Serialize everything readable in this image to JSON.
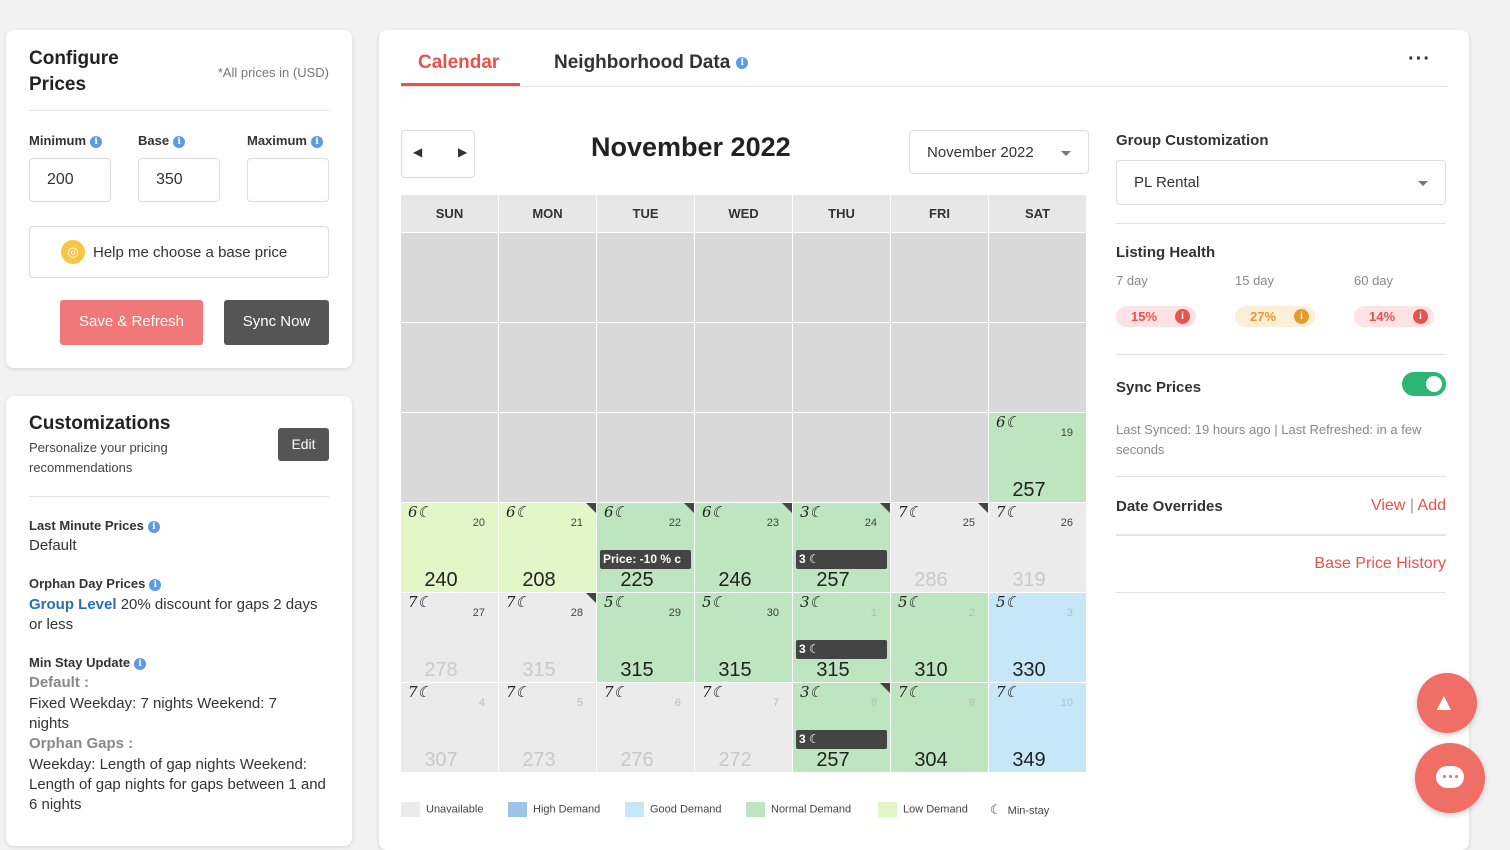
{
  "config": {
    "title_line1": "Configure",
    "title_line2": "Prices",
    "currency_note": "*All prices in (USD)",
    "minimum_label": "Minimum",
    "base_label": "Base",
    "maximum_label": "Maximum",
    "minimum_value": "200",
    "base_value": "350",
    "maximum_value": "",
    "help_label": "Help me choose a base price",
    "save_label": "Save & Refresh",
    "sync_label": "Sync Now"
  },
  "customizations": {
    "title": "Customizations",
    "subtitle": "Personalize your pricing recommendations",
    "edit_label": "Edit",
    "last_minute_label": "Last Minute Prices",
    "last_minute_value": "Default",
    "orphan_label": "Orphan Day Prices",
    "orphan_group": "Group Level",
    "orphan_text": " 20% discount for gaps 2 days or less",
    "min_stay_label": "Min Stay Update",
    "min_stay_default_label": "Default :",
    "min_stay_default_text": "Fixed Weekday: 7 nights Weekend: 7 nights",
    "orphan_gaps_label": "Orphan Gaps :",
    "orphan_gaps_text": "Weekday: Length of gap nights Weekend: Length of gap nights for gaps between 1 and 6 nights"
  },
  "tabs": {
    "calendar": "Calendar",
    "neighborhood": "Neighborhood Data",
    "menu": "···"
  },
  "calendar": {
    "title": "November 2022",
    "selected_month": "November 2022",
    "weekdays": [
      "SUN",
      "MON",
      "TUE",
      "WED",
      "THU",
      "FRI",
      "SAT"
    ],
    "weeks": [
      [
        null,
        null,
        null,
        null,
        null,
        null,
        null
      ],
      [
        null,
        null,
        null,
        null,
        null,
        null,
        null
      ],
      [
        null,
        null,
        null,
        null,
        null,
        null,
        {
          "day": "19",
          "minstay": "6☾",
          "price": "257",
          "demand": "normal"
        }
      ],
      [
        {
          "day": "20",
          "minstay": "6☾",
          "price": "240",
          "demand": "low"
        },
        {
          "day": "21",
          "minstay": "6☾",
          "price": "208",
          "demand": "low",
          "corner": true
        },
        {
          "day": "22",
          "minstay": "6☾",
          "price": "225",
          "demand": "normal",
          "corner": true,
          "bar": "Price: -10 % c"
        },
        {
          "day": "23",
          "minstay": "6☾",
          "price": "246",
          "demand": "normal",
          "corner": true
        },
        {
          "day": "24",
          "minstay": "3☾",
          "price": "257",
          "demand": "normal",
          "corner": true,
          "bar": "3 ☾"
        },
        {
          "day": "25",
          "minstay": "7☾",
          "price": "286",
          "demand": "unavailable",
          "corner": true
        },
        {
          "day": "26",
          "minstay": "7☾",
          "price": "319",
          "demand": "unavailable"
        }
      ],
      [
        {
          "day": "27",
          "minstay": "7☾",
          "price": "278",
          "demand": "unavailable"
        },
        {
          "day": "28",
          "minstay": "7☾",
          "price": "315",
          "demand": "unavailable",
          "corner": true
        },
        {
          "day": "29",
          "minstay": "5☾",
          "price": "315",
          "demand": "normal"
        },
        {
          "day": "30",
          "minstay": "5☾",
          "price": "315",
          "demand": "normal"
        },
        {
          "day": "1",
          "minstay": "3☾",
          "price": "315",
          "demand": "normal",
          "bar": "3 ☾",
          "faint": true
        },
        {
          "day": "2",
          "minstay": "5☾",
          "price": "310",
          "demand": "normal",
          "faint": true
        },
        {
          "day": "3",
          "minstay": "5☾",
          "price": "330",
          "demand": "good",
          "faint": true
        }
      ],
      [
        {
          "day": "4",
          "minstay": "7☾",
          "price": "307",
          "demand": "unavailable",
          "faint": true
        },
        {
          "day": "5",
          "minstay": "7☾",
          "price": "273",
          "demand": "unavailable",
          "faint": true
        },
        {
          "day": "6",
          "minstay": "7☾",
          "price": "276",
          "demand": "unavailable",
          "faint": true
        },
        {
          "day": "7",
          "minstay": "7☾",
          "price": "272",
          "demand": "unavailable",
          "faint": true
        },
        {
          "day": "8",
          "minstay": "3☾",
          "price": "257",
          "demand": "normal",
          "bar": "3 ☾",
          "corner": true,
          "faint": true
        },
        {
          "day": "9",
          "minstay": "7☾",
          "price": "304",
          "demand": "normal",
          "faint": true
        },
        {
          "day": "10",
          "minstay": "7☾",
          "price": "349",
          "demand": "good",
          "faint": true
        }
      ]
    ],
    "legend": [
      {
        "label": "Unavailable",
        "color": "#ebebeb"
      },
      {
        "label": "High Demand",
        "color": "#9ec3e6"
      },
      {
        "label": "Good Demand",
        "color": "#c6e7f7"
      },
      {
        "label": "Normal Demand",
        "color": "#bde5bf"
      },
      {
        "label": "Low Demand",
        "color": "#e2f7c8"
      },
      {
        "label": "Min-stay",
        "color": ""
      }
    ]
  },
  "colors": {
    "empty": "#d9d9d9",
    "unavailable": "#ebebeb",
    "normal": "#bde5bf",
    "low": "#e2f7c8",
    "good": "#c6e7f7",
    "accent": "#e8514c",
    "save": "#f07878",
    "sync": "#555555",
    "toggle": "#2bb673"
  },
  "sidebar": {
    "group_label": "Group Customization",
    "group_value": "PL Rental",
    "health_label": "Listing Health",
    "health": [
      {
        "period": "7 day",
        "value": "15%",
        "tone": "red"
      },
      {
        "period": "15 day",
        "value": "27%",
        "tone": "orange"
      },
      {
        "period": "60 day",
        "value": "14%",
        "tone": "red"
      }
    ],
    "sync_label": "Sync Prices",
    "sync_enabled": true,
    "sync_info": "Last Synced: 19 hours ago | Last Refreshed: in a few seconds",
    "overrides_label": "Date Overrides",
    "view_label": "View",
    "separator": "|",
    "add_label": "Add",
    "history_label": "Base Price History"
  }
}
